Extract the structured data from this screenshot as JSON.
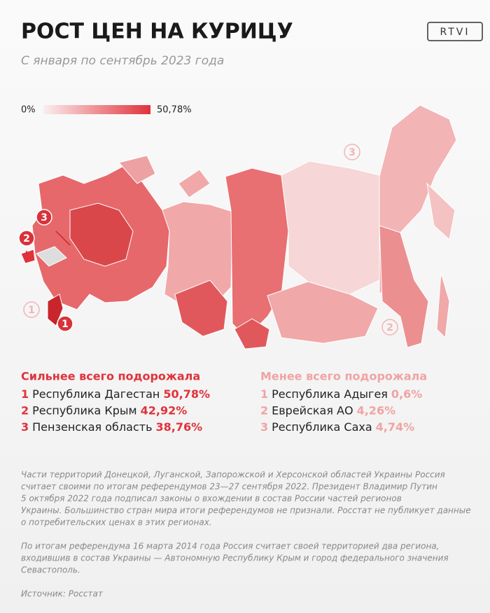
{
  "header": {
    "title": "РОСТ ЦЕН НА КУРИЦУ",
    "subtitle": "С января по сентябрь 2023 года",
    "logo": "RTVI"
  },
  "legend": {
    "min_label": "0%",
    "max_label": "50,78%"
  },
  "map": {
    "markers": [
      {
        "label": "3",
        "kind": "top"
      },
      {
        "label": "2",
        "kind": "top"
      },
      {
        "label": "1",
        "kind": "top"
      },
      {
        "label": "1",
        "kind": "bottom"
      },
      {
        "label": "3",
        "kind": "bottom"
      },
      {
        "label": "2",
        "kind": "bottom"
      }
    ]
  },
  "lists": [
    {
      "heading": "Сильнее всего подорожала",
      "color": "#e0323b",
      "rows": [
        {
          "rank": "1",
          "name": "Республика Дагестан",
          "value": "50,78%"
        },
        {
          "rank": "2",
          "name": "Республика Крым",
          "value": "42,92%"
        },
        {
          "rank": "3",
          "name": "Пензенская область",
          "value": "38,76%"
        }
      ]
    },
    {
      "heading": "Менее всего подорожала",
      "color": "#f0a3a4",
      "rows": [
        {
          "rank": "1",
          "name": "Республика Адыгея",
          "value": "0,6%"
        },
        {
          "rank": "2",
          "name": "Еврейская АО",
          "value": "4,26%"
        },
        {
          "rank": "3",
          "name": "Республика Саха",
          "value": "4,74%"
        }
      ]
    }
  ],
  "notes": [
    [
      "Части территорий Донецкой, Луганской, Запорожской и Херсонской областей Украины Россия",
      "считает своими по итогам референдумов 23—27 сентября 2022. Президент Владимир Путин",
      "5 октября 2022 года подписал законы о вхождении в состав России частей регионов",
      "Украины. Большинство стран мира итоги референдумов не признали. Росстат не публикует данные",
      "о потребительских ценах в этих регионах."
    ],
    [
      "По итогам референдума 16 марта 2014 года Россия считает своей территорией два региона,",
      "входившив в состав Украины — Автономную Республику Крым и город федерального значения",
      "Севастополь."
    ],
    [
      "Источник: Росстат"
    ]
  ]
}
